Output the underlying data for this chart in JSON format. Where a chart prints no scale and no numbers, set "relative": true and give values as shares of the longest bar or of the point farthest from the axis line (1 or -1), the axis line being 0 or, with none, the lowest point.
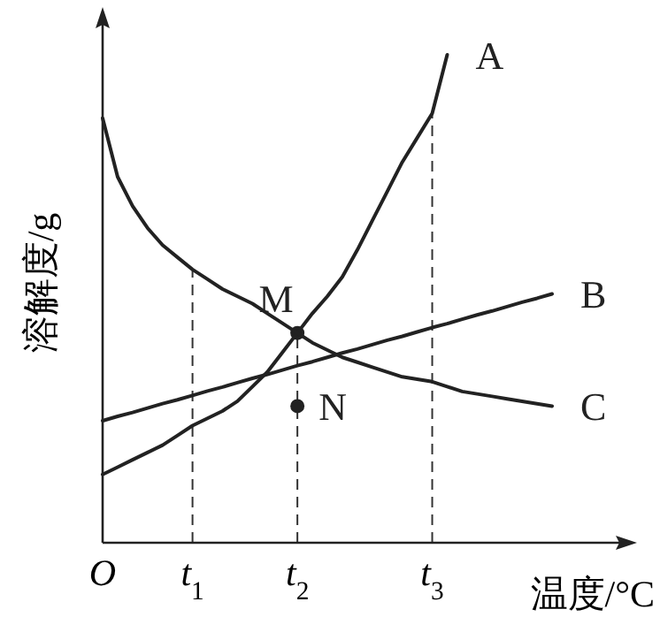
{
  "chart_data": {
    "type": "line",
    "relative": true,
    "tick_labels": "x",
    "xlabel": "温度/°C",
    "ylabel": "溶解度/g",
    "line_style": "solid",
    "marker": "none",
    "categories": [
      "*O*",
      null,
      null,
      null,
      null,
      null,
      "*t*$_{1}$",
      null,
      null,
      null,
      null,
      null,
      null,
      "*t*$_{2}$",
      null,
      null,
      null,
      null,
      null,
      null,
      null,
      null,
      "*t*$_{3}$",
      null,
      null,
      null,
      null,
      null,
      null,
      null,
      null
    ],
    "ref_lines": [
      {
        "axis": "x",
        "value": "*t*$_{1}$",
        "line_style": "dashed"
      },
      {
        "axis": "x",
        "value": "*t*$_{2}$",
        "line_style": "dashed"
      },
      {
        "axis": "x",
        "value": "*t*$_{3}$",
        "line_style": "dashed"
      }
    ],
    "series": [
      {
        "name": "A",
        "color": "#222222",
        "values": [
          0.14,
          0.155,
          0.17,
          0.185,
          0.2,
          0.22,
          0.24,
          0.255,
          0.27,
          0.29,
          0.32,
          0.35,
          0.39,
          0.43,
          0.47,
          0.505,
          0.545,
          0.6,
          0.66,
          0.72,
          0.78,
          0.83,
          0.88,
          1.0,
          null,
          null,
          null,
          null,
          null,
          null,
          null
        ]
      },
      {
        "name": "B",
        "color": "#222222",
        "values": [
          0.25,
          0.259,
          0.267,
          0.276,
          0.285,
          0.293,
          0.302,
          0.311,
          0.319,
          0.328,
          0.337,
          0.345,
          0.354,
          0.363,
          0.371,
          0.38,
          0.389,
          0.397,
          0.406,
          0.415,
          0.423,
          0.432,
          0.441,
          0.449,
          0.458,
          0.467,
          0.475,
          0.484,
          0.493,
          0.501,
          0.51
        ]
      },
      {
        "name": "C",
        "color": "#222222",
        "values": [
          0.87,
          0.75,
          0.69,
          0.645,
          0.61,
          0.585,
          0.56,
          0.54,
          0.52,
          0.505,
          0.49,
          0.47,
          0.45,
          0.43,
          0.41,
          0.395,
          0.38,
          0.37,
          0.36,
          0.35,
          0.34,
          0.335,
          0.33,
          0.32,
          0.31,
          0.305,
          0.3,
          0.295,
          0.29,
          0.285,
          0.28
        ]
      }
    ],
    "annotations": [
      {
        "text": "M",
        "x": "*t*$_{2}$",
        "y": 0.43
      },
      {
        "text": "N",
        "x": "*t*$_{2}$",
        "y": 0.28
      }
    ]
  }
}
